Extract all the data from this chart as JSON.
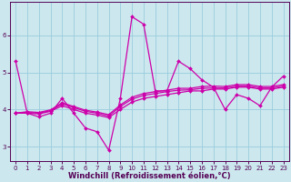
{
  "xlabel": "Windchill (Refroidissement éolien,°C)",
  "ylabel": "",
  "background_color": "#cce8ee",
  "grid_color": "#99ccdd",
  "line_color": "#cc00aa",
  "spine_color": "#550055",
  "xlim": [
    -0.5,
    23.5
  ],
  "ylim": [
    2.6,
    6.9
  ],
  "yticks": [
    3,
    4,
    5,
    6
  ],
  "xticks": [
    0,
    1,
    2,
    3,
    4,
    5,
    6,
    7,
    8,
    9,
    10,
    11,
    12,
    13,
    14,
    15,
    16,
    17,
    18,
    19,
    20,
    21,
    22,
    23
  ],
  "lines": [
    {
      "x": [
        0,
        1,
        2,
        3,
        4,
        5,
        6,
        7,
        8,
        9,
        10,
        11,
        12,
        13,
        14,
        15,
        16,
        17,
        18,
        19,
        20,
        21,
        22,
        23
      ],
      "y": [
        5.3,
        3.9,
        3.8,
        3.9,
        4.3,
        3.9,
        3.5,
        3.4,
        2.9,
        4.3,
        6.5,
        6.3,
        4.5,
        4.5,
        5.3,
        5.1,
        4.8,
        4.6,
        4.0,
        4.4,
        4.3,
        4.1,
        4.6,
        4.9
      ]
    },
    {
      "x": [
        0,
        1,
        2,
        3,
        4,
        5,
        6,
        7,
        8,
        9,
        10,
        11,
        12,
        13,
        14,
        15,
        16,
        17,
        18,
        19,
        20,
        21,
        22,
        23
      ],
      "y": [
        3.9,
        3.9,
        3.88,
        3.95,
        4.1,
        4.0,
        3.9,
        3.85,
        3.78,
        4.0,
        4.2,
        4.3,
        4.35,
        4.4,
        4.45,
        4.5,
        4.5,
        4.55,
        4.55,
        4.6,
        4.6,
        4.55,
        4.55,
        4.6
      ]
    },
    {
      "x": [
        0,
        1,
        2,
        3,
        4,
        5,
        6,
        7,
        8,
        9,
        10,
        11,
        12,
        13,
        14,
        15,
        16,
        17,
        18,
        19,
        20,
        21,
        22,
        23
      ],
      "y": [
        3.9,
        3.92,
        3.9,
        3.97,
        4.15,
        4.05,
        3.95,
        3.9,
        3.82,
        4.08,
        4.28,
        4.38,
        4.43,
        4.48,
        4.52,
        4.53,
        4.57,
        4.58,
        4.58,
        4.63,
        4.63,
        4.58,
        4.58,
        4.63
      ]
    },
    {
      "x": [
        0,
        1,
        2,
        3,
        4,
        5,
        6,
        7,
        8,
        9,
        10,
        11,
        12,
        13,
        14,
        15,
        16,
        17,
        18,
        19,
        20,
        21,
        22,
        23
      ],
      "y": [
        3.9,
        3.94,
        3.92,
        3.99,
        4.18,
        4.08,
        3.98,
        3.93,
        3.86,
        4.12,
        4.33,
        4.43,
        4.48,
        4.52,
        4.57,
        4.57,
        4.62,
        4.63,
        4.62,
        4.67,
        4.67,
        4.62,
        4.62,
        4.67
      ]
    }
  ],
  "marker": "D",
  "markersize": 2.0,
  "linewidth": 0.9,
  "tick_fontsize": 5.0,
  "xlabel_fontsize": 6.0
}
